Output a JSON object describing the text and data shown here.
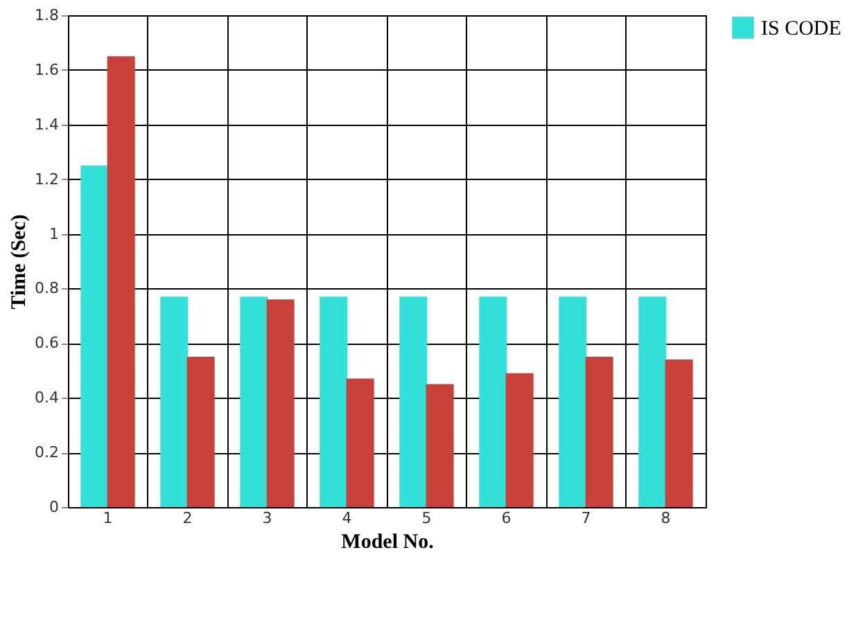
{
  "chart_data": {
    "type": "bar",
    "xlabel": "Model No.",
    "ylabel": "Time (Sec)",
    "categories": [
      "1",
      "2",
      "3",
      "4",
      "5",
      "6",
      "7",
      "8"
    ],
    "series": [
      {
        "name": "IS CODE",
        "color": "#33e0d8",
        "values": [
          1.25,
          0.77,
          0.77,
          0.77,
          0.77,
          0.77,
          0.77,
          0.77
        ]
      },
      {
        "color": "#c8403a",
        "values": [
          1.65,
          0.55,
          0.76,
          0.47,
          0.45,
          0.49,
          0.55,
          0.54
        ]
      }
    ],
    "ylim": [
      0,
      1.8
    ],
    "yticks": [
      0,
      0.2,
      0.4,
      0.6,
      0.8,
      1,
      1.2,
      1.4,
      1.6,
      1.8
    ],
    "grid": true,
    "legend": "right"
  }
}
